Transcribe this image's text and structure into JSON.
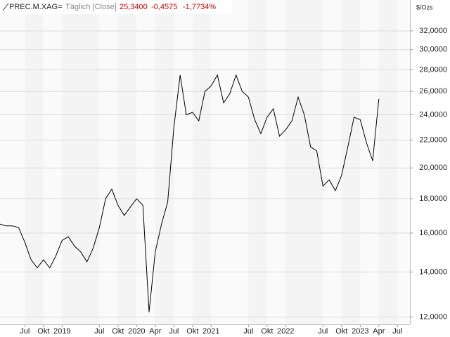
{
  "chart_data": {
    "type": "line",
    "title": "PREC.M.XAG=",
    "subtitle": "Täglich [Close]",
    "annotations": [
      "25,3400",
      "-0,4575",
      "-1,7734%"
    ],
    "ylabel": "$/Ozs",
    "log_scale": true,
    "grid": true,
    "color": "#000000",
    "x": [
      "2018-03",
      "2018-04",
      "2018-05",
      "2018-06",
      "2018-07",
      "2018-08",
      "2018-09",
      "2018-10",
      "2018-11",
      "2018-12",
      "2019-01",
      "2019-02",
      "2019-03",
      "2019-04",
      "2019-05",
      "2019-06",
      "2019-07",
      "2019-08",
      "2019-09",
      "2019-10",
      "2019-11",
      "2019-12",
      "2020-01",
      "2020-02",
      "2020-03",
      "2020-04",
      "2020-05",
      "2020-06",
      "2020-07",
      "2020-08",
      "2020-09",
      "2020-10",
      "2020-11",
      "2020-12",
      "2021-01",
      "2021-02",
      "2021-03",
      "2021-04",
      "2021-05",
      "2021-06",
      "2021-07",
      "2021-08",
      "2021-09",
      "2021-10",
      "2021-11",
      "2021-12",
      "2022-01",
      "2022-02",
      "2022-03",
      "2022-04",
      "2022-05",
      "2022-06",
      "2022-07",
      "2022-08",
      "2022-09",
      "2022-10",
      "2022-11",
      "2022-12",
      "2023-01",
      "2023-02",
      "2023-03",
      "2023-04"
    ],
    "values": [
      16.5,
      16.4,
      16.4,
      16.3,
      15.5,
      14.6,
      14.2,
      14.6,
      14.2,
      14.8,
      15.6,
      15.8,
      15.3,
      15.0,
      14.5,
      15.2,
      16.3,
      18.0,
      18.6,
      17.6,
      17.0,
      17.5,
      18.0,
      17.6,
      12.2,
      15.0,
      16.5,
      17.8,
      23.0,
      27.5,
      24.0,
      24.2,
      23.5,
      26.0,
      26.5,
      27.5,
      25.0,
      25.8,
      27.5,
      26.0,
      25.5,
      23.6,
      22.5,
      23.8,
      24.5,
      22.3,
      22.8,
      23.5,
      25.5,
      24.0,
      21.5,
      21.2,
      18.8,
      19.2,
      18.5,
      19.5,
      21.5,
      23.8,
      23.6,
      21.8,
      20.5,
      25.34
    ],
    "xlim": [
      "2018-03",
      "2023-09"
    ],
    "xticks": [
      {
        "value": "2018-07",
        "label": "Jul"
      },
      {
        "value": "2018-10",
        "label": "Okt"
      },
      {
        "value": "2019-01",
        "label": "2019"
      },
      {
        "value": "2019-07",
        "label": "Jul"
      },
      {
        "value": "2019-10",
        "label": "Okt"
      },
      {
        "value": "2020-01",
        "label": "2020"
      },
      {
        "value": "2020-04",
        "label": "Apr"
      },
      {
        "value": "2020-07",
        "label": "Jul"
      },
      {
        "value": "2020-10",
        "label": "Okt"
      },
      {
        "value": "2021-01",
        "label": "2021"
      },
      {
        "value": "2021-07",
        "label": "Jul"
      },
      {
        "value": "2021-10",
        "label": "Okt"
      },
      {
        "value": "2022-01",
        "label": "2022"
      },
      {
        "value": "2022-07",
        "label": "Jul"
      },
      {
        "value": "2022-10",
        "label": "Okt"
      },
      {
        "value": "2023-01",
        "label": "2023"
      },
      {
        "value": "2023-04",
        "label": "Apr"
      },
      {
        "value": "2023-07",
        "label": "Jul"
      }
    ],
    "ylim": [
      11.7,
      33.9
    ],
    "yticks": [
      {
        "value": 12,
        "label": "12,0000"
      },
      {
        "value": 14,
        "label": "14,0000"
      },
      {
        "value": 16,
        "label": "16,0000"
      },
      {
        "value": 18,
        "label": "18,0000"
      },
      {
        "value": 20,
        "label": "20,0000"
      },
      {
        "value": 22,
        "label": "22,0000"
      },
      {
        "value": 24,
        "label": "24,0000"
      },
      {
        "value": 26,
        "label": "26,0000"
      },
      {
        "value": 28,
        "label": "28,0000"
      },
      {
        "value": 30,
        "label": "30,0000"
      },
      {
        "value": 32,
        "label": "32,0000"
      }
    ]
  }
}
